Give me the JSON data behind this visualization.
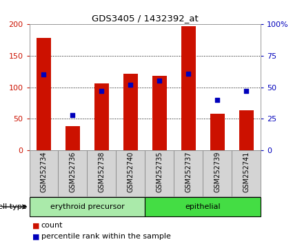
{
  "title": "GDS3405 / 1432392_at",
  "samples": [
    "GSM252734",
    "GSM252736",
    "GSM252738",
    "GSM252740",
    "GSM252735",
    "GSM252737",
    "GSM252739",
    "GSM252741"
  ],
  "counts": [
    178,
    38,
    106,
    122,
    118,
    197,
    58,
    63
  ],
  "percentile_ranks": [
    60,
    28,
    47,
    52,
    55,
    61,
    40,
    47
  ],
  "groups": [
    {
      "label": "erythroid precursor",
      "indices": [
        0,
        1,
        2,
        3
      ],
      "color": "#AAEAAA"
    },
    {
      "label": "epithelial",
      "indices": [
        4,
        5,
        6,
        7
      ],
      "color": "#44DD44"
    }
  ],
  "bar_color": "#CC1100",
  "dot_color": "#0000BB",
  "ylim_left": [
    0,
    200
  ],
  "ylim_right": [
    0,
    100
  ],
  "yticks_left": [
    0,
    50,
    100,
    150,
    200
  ],
  "yticks_right": [
    0,
    25,
    50,
    75,
    100
  ],
  "ytick_labels_left": [
    "0",
    "50",
    "100",
    "150",
    "200"
  ],
  "ytick_labels_right": [
    "0",
    "25",
    "50",
    "75",
    "100%"
  ],
  "cell_type_label": "cell type",
  "legend_count_label": "count",
  "legend_pct_label": "percentile rank within the sample",
  "plot_bg": "#FFFFFF",
  "gray_cell_color": "#D4D4D4",
  "gray_cell_edge": "#888888",
  "bar_width": 0.5
}
